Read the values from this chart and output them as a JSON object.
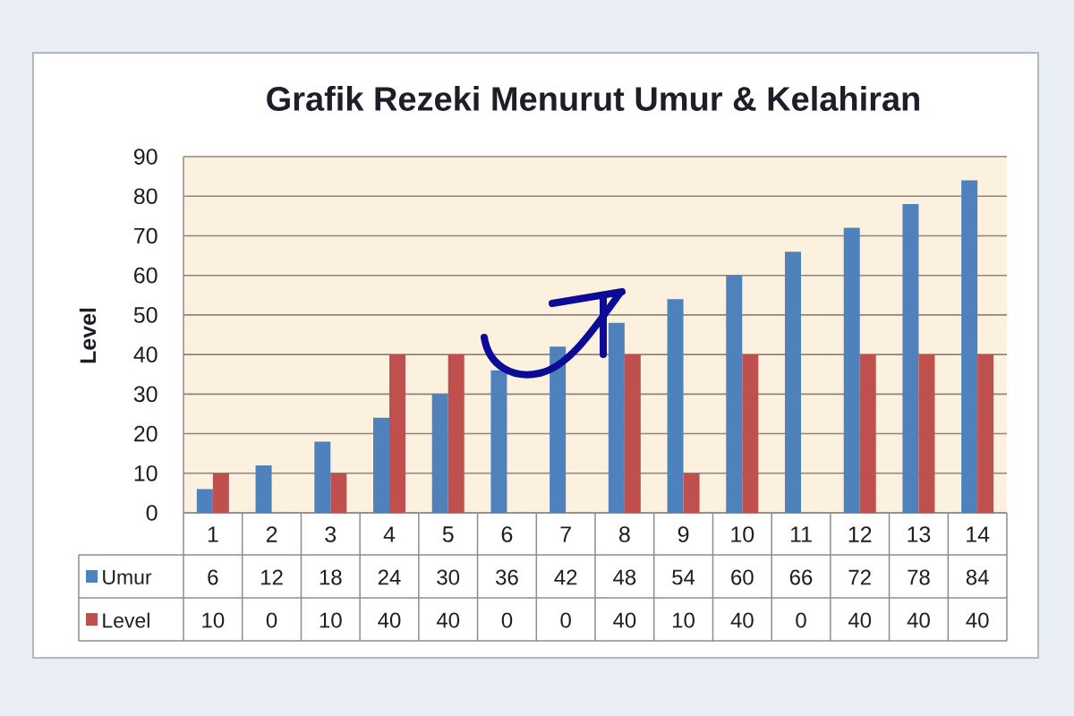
{
  "chart_data": {
    "type": "bar",
    "title": "Grafik Rezeki Menurut Umur & Kelahiran",
    "ylabel": "Level",
    "categories": [
      "1",
      "2",
      "3",
      "4",
      "5",
      "6",
      "7",
      "8",
      "9",
      "10",
      "11",
      "12",
      "13",
      "14"
    ],
    "series": [
      {
        "name": "Umur",
        "color": "#4f81bd",
        "values": [
          6,
          12,
          18,
          24,
          30,
          36,
          42,
          48,
          54,
          60,
          66,
          72,
          78,
          84
        ]
      },
      {
        "name": "Level",
        "color": "#c0504d",
        "values": [
          10,
          0,
          10,
          40,
          40,
          0,
          0,
          40,
          10,
          40,
          0,
          40,
          40,
          40
        ]
      }
    ],
    "ylim": [
      0,
      90
    ],
    "yticks": [
      0,
      10,
      20,
      30,
      40,
      50,
      60,
      70,
      80,
      90
    ],
    "grid": "y",
    "legend": "bottom",
    "data_labels": true
  }
}
